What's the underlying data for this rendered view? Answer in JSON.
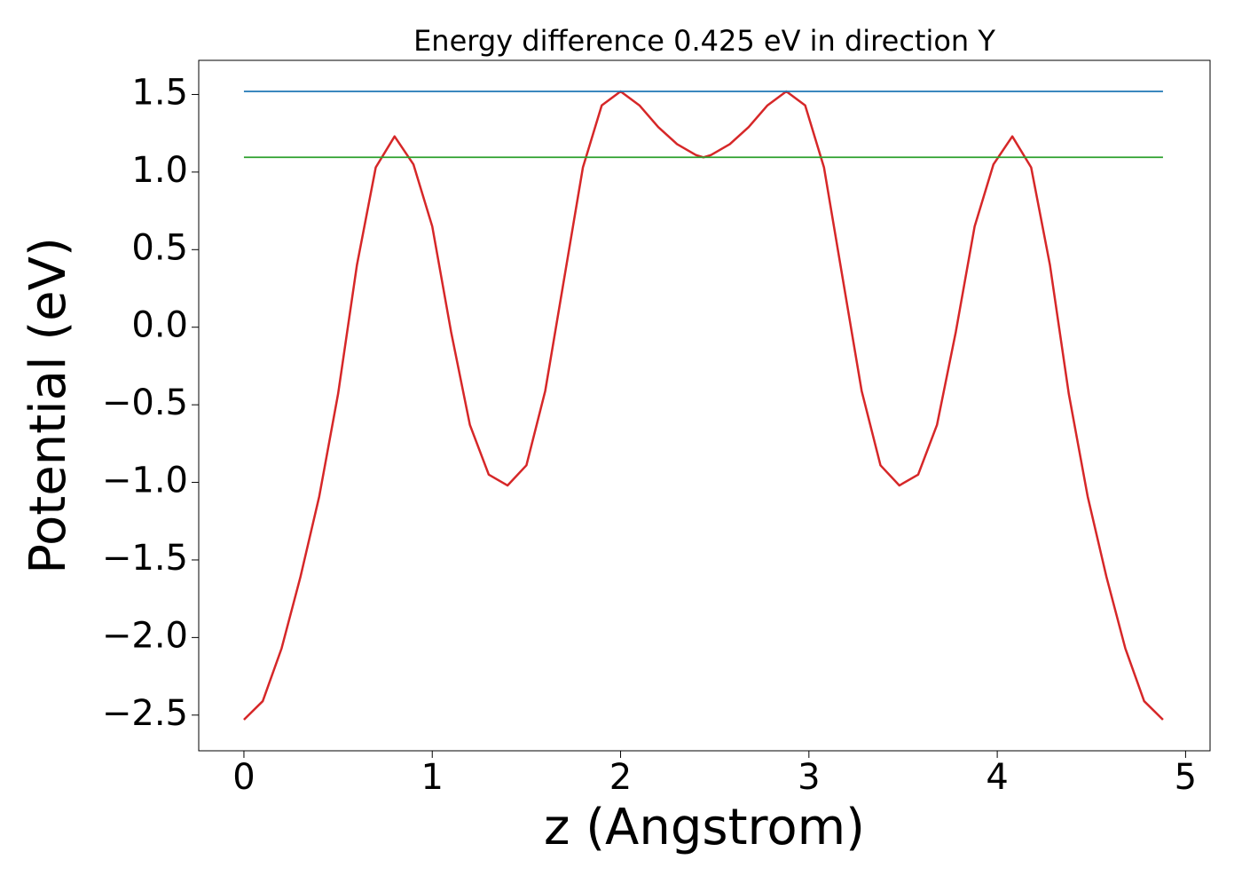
{
  "chart_data": {
    "type": "line",
    "title": "Energy difference 0.425 eV in direction Y",
    "xlabel": "z (Angstrom)",
    "ylabel": "Potential (eV)",
    "xlim": [
      -0.24,
      5.13
    ],
    "ylim": [
      -2.73,
      1.72
    ],
    "xticks": [
      0,
      1,
      2,
      3,
      4,
      5
    ],
    "yticks": [
      {
        "value": -2.5,
        "label": "−2.5"
      },
      {
        "value": -2.0,
        "label": "−2.0"
      },
      {
        "value": -1.5,
        "label": "−1.5"
      },
      {
        "value": -1.0,
        "label": "−1.0"
      },
      {
        "value": -0.5,
        "label": "−0.5"
      },
      {
        "value": 0.0,
        "label": "0.0"
      },
      0.5,
      {
        "value": 1.0,
        "label": "1.0"
      },
      1.5
    ],
    "grid": false,
    "series": [
      {
        "color": "#d62728",
        "x": [
          0,
          0.1,
          0.2,
          0.3,
          0.4,
          0.5,
          0.6,
          0.7,
          0.8,
          0.9,
          1.0,
          1.1,
          1.2,
          1.3,
          1.4,
          1.5,
          1.6,
          1.7,
          1.8,
          1.9,
          2.0,
          2.1,
          2.2,
          2.3,
          2.4,
          2.44,
          2.48,
          2.58,
          2.68,
          2.78,
          2.88,
          2.98,
          3.08,
          3.18,
          3.28,
          3.38,
          3.48,
          3.58,
          3.68,
          3.78,
          3.88,
          3.98,
          4.08,
          4.18,
          4.28,
          4.38,
          4.48,
          4.58,
          4.68,
          4.78,
          4.88
        ],
        "values": [
          -2.53,
          -2.41,
          -2.07,
          -1.61,
          -1.09,
          -0.43,
          0.4,
          1.03,
          1.23,
          1.05,
          0.65,
          -0.03,
          -0.63,
          -0.95,
          -1.02,
          -0.89,
          -0.41,
          0.31,
          1.03,
          1.43,
          1.52,
          1.43,
          1.29,
          1.18,
          1.11,
          1.095,
          1.11,
          1.18,
          1.29,
          1.43,
          1.52,
          1.43,
          1.03,
          0.31,
          -0.41,
          -0.89,
          -1.02,
          -0.95,
          -0.63,
          -0.03,
          0.65,
          1.05,
          1.23,
          1.03,
          0.4,
          -0.43,
          -1.09,
          -1.61,
          -2.07,
          -2.41,
          -2.53
        ]
      },
      {
        "color": "#1f77b4",
        "x": [
          0,
          4.88
        ],
        "values": [
          1.52,
          1.52
        ]
      },
      {
        "color": "#2ca02c",
        "x": [
          0,
          4.88
        ],
        "values": [
          1.095,
          1.095
        ]
      }
    ]
  }
}
